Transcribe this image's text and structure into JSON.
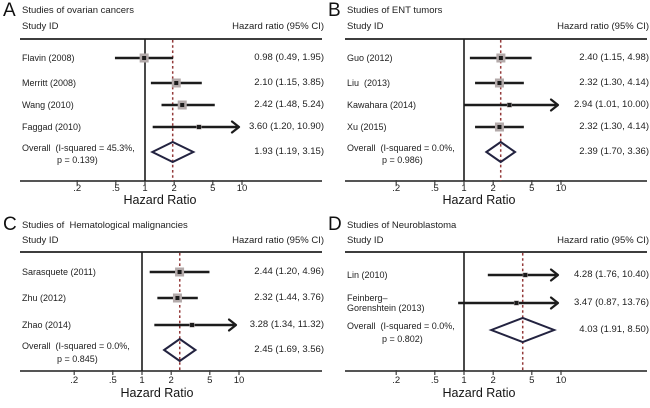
{
  "figure": {
    "column_left": "Study ID",
    "column_right": "Hazard ratio (95% CI)",
    "xlabel": "Hazard Ratio",
    "tick_labels": [
      ".2",
      ".5",
      "1",
      "2",
      "5",
      "10"
    ],
    "tick_values": [
      0.2,
      0.5,
      1,
      2,
      5,
      10
    ],
    "colors": {
      "line": "#1c1c1c",
      "rule": "#3d3d3d",
      "pooled_dashed": "#943a3a",
      "diamond": "#232340",
      "weight_box": "#b3aaaa",
      "text": "#222222"
    }
  },
  "chart_data": [
    {
      "type": "forest",
      "panel": "A",
      "title": "Studies of ovarian cancers",
      "xscale": "log",
      "xlim": [
        0.13,
        30
      ],
      "xticks": [
        0.2,
        0.5,
        1,
        2,
        5,
        10
      ],
      "xlabel": "Hazard Ratio",
      "studies": [
        {
          "label": "Flavin (2008)",
          "hr": 0.98,
          "ci_low": 0.49,
          "ci_high": 1.95,
          "value_text": "0.98 (0.49, 1.95)",
          "clipped_high": false
        },
        {
          "label": "Merritt (2008)",
          "hr": 2.1,
          "ci_low": 1.15,
          "ci_high": 3.85,
          "value_text": "2.10 (1.15, 3.85)",
          "clipped_high": false
        },
        {
          "label": "Wang (2010)",
          "hr": 2.42,
          "ci_low": 1.48,
          "ci_high": 5.24,
          "value_text": "2.42 (1.48, 5.24)",
          "clipped_high": false
        },
        {
          "label": "Faggad (2010)",
          "hr": 3.6,
          "ci_low": 1.2,
          "ci_high": 10.9,
          "value_text": "3.60 (1.20, 10.90)",
          "clipped_high": true
        }
      ],
      "overall": {
        "label_line1": "Overall  (I-squared = 45.3%,",
        "label_line2": "p = 0.139)",
        "hr": 1.93,
        "ci_low": 1.19,
        "ci_high": 3.15,
        "value_text": "1.93 (1.19, 3.15)"
      }
    },
    {
      "type": "forest",
      "panel": "B",
      "title": "Studies of ENT tumors",
      "xscale": "log",
      "xlim": [
        0.13,
        30
      ],
      "xticks": [
        0.2,
        0.5,
        1,
        2,
        5,
        10
      ],
      "xlabel": "Hazard Ratio",
      "studies": [
        {
          "label": "Guo (2012)",
          "hr": 2.4,
          "ci_low": 1.15,
          "ci_high": 4.98,
          "value_text": "2.40 (1.15, 4.98)",
          "clipped_high": false
        },
        {
          "label": "Liu  (2013)",
          "hr": 2.32,
          "ci_low": 1.3,
          "ci_high": 4.14,
          "value_text": "2.32 (1.30, 4.14)",
          "clipped_high": false
        },
        {
          "label": "Kawahara (2014)",
          "hr": 2.94,
          "ci_low": 1.01,
          "ci_high": 10.0,
          "value_text": "2.94 (1.01, 10.00)",
          "clipped_high": true
        },
        {
          "label": "Xu (2015)",
          "hr": 2.32,
          "ci_low": 1.3,
          "ci_high": 4.14,
          "value_text": "2.32 (1.30, 4.14)",
          "clipped_high": false
        }
      ],
      "overall": {
        "label_line1": "Overall  (I-squared = 0.0%,",
        "label_line2": "p = 0.986)",
        "hr": 2.39,
        "ci_low": 1.7,
        "ci_high": 3.36,
        "value_text": "2.39 (1.70, 3.36)"
      }
    },
    {
      "type": "forest",
      "panel": "C",
      "title": "Studies of  Hematological malignancies",
      "xscale": "log",
      "xlim": [
        0.13,
        30
      ],
      "xticks": [
        0.2,
        0.5,
        1,
        2,
        5,
        10
      ],
      "xlabel": "Hazard Ratio",
      "studies": [
        {
          "label": "Sarasquete (2011)",
          "hr": 2.44,
          "ci_low": 1.2,
          "ci_high": 4.96,
          "value_text": "2.44 (1.20, 4.96)",
          "clipped_high": false
        },
        {
          "label": "Zhu (2012)",
          "hr": 2.32,
          "ci_low": 1.44,
          "ci_high": 3.76,
          "value_text": "2.32 (1.44, 3.76)",
          "clipped_high": false
        },
        {
          "label": "Zhao (2014)",
          "hr": 3.28,
          "ci_low": 1.34,
          "ci_high": 11.32,
          "value_text": "3.28 (1.34, 11.32)",
          "clipped_high": true
        }
      ],
      "overall": {
        "label_line1": "Overall  (I-squared = 0.0%,",
        "label_line2": "p = 0.845)",
        "hr": 2.45,
        "ci_low": 1.69,
        "ci_high": 3.56,
        "value_text": "2.45 (1.69, 3.56)"
      }
    },
    {
      "type": "forest",
      "panel": "D",
      "title": "Studies of Neuroblastoma",
      "xscale": "log",
      "xlim": [
        0.13,
        30
      ],
      "xticks": [
        0.2,
        0.5,
        1,
        2,
        5,
        10
      ],
      "xlabel": "Hazard Ratio",
      "studies": [
        {
          "label": "Lin (2010)",
          "hr": 4.28,
          "ci_low": 1.76,
          "ci_high": 10.4,
          "value_text": "4.28 (1.76, 10.40)",
          "clipped_high": true
        },
        {
          "label": "Feinberg–\nGorenshtein (2013)",
          "hr": 3.47,
          "ci_low": 0.87,
          "ci_high": 13.76,
          "value_text": "3.47 (0.87, 13.76)",
          "clipped_high": true
        }
      ],
      "overall": {
        "label_line1": "Overall  (I-squared = 0.0%,",
        "label_line2": "p = 0.802)",
        "hr": 4.03,
        "ci_low": 1.91,
        "ci_high": 8.5,
        "value_text": "4.03 (1.91, 8.50)"
      }
    }
  ]
}
